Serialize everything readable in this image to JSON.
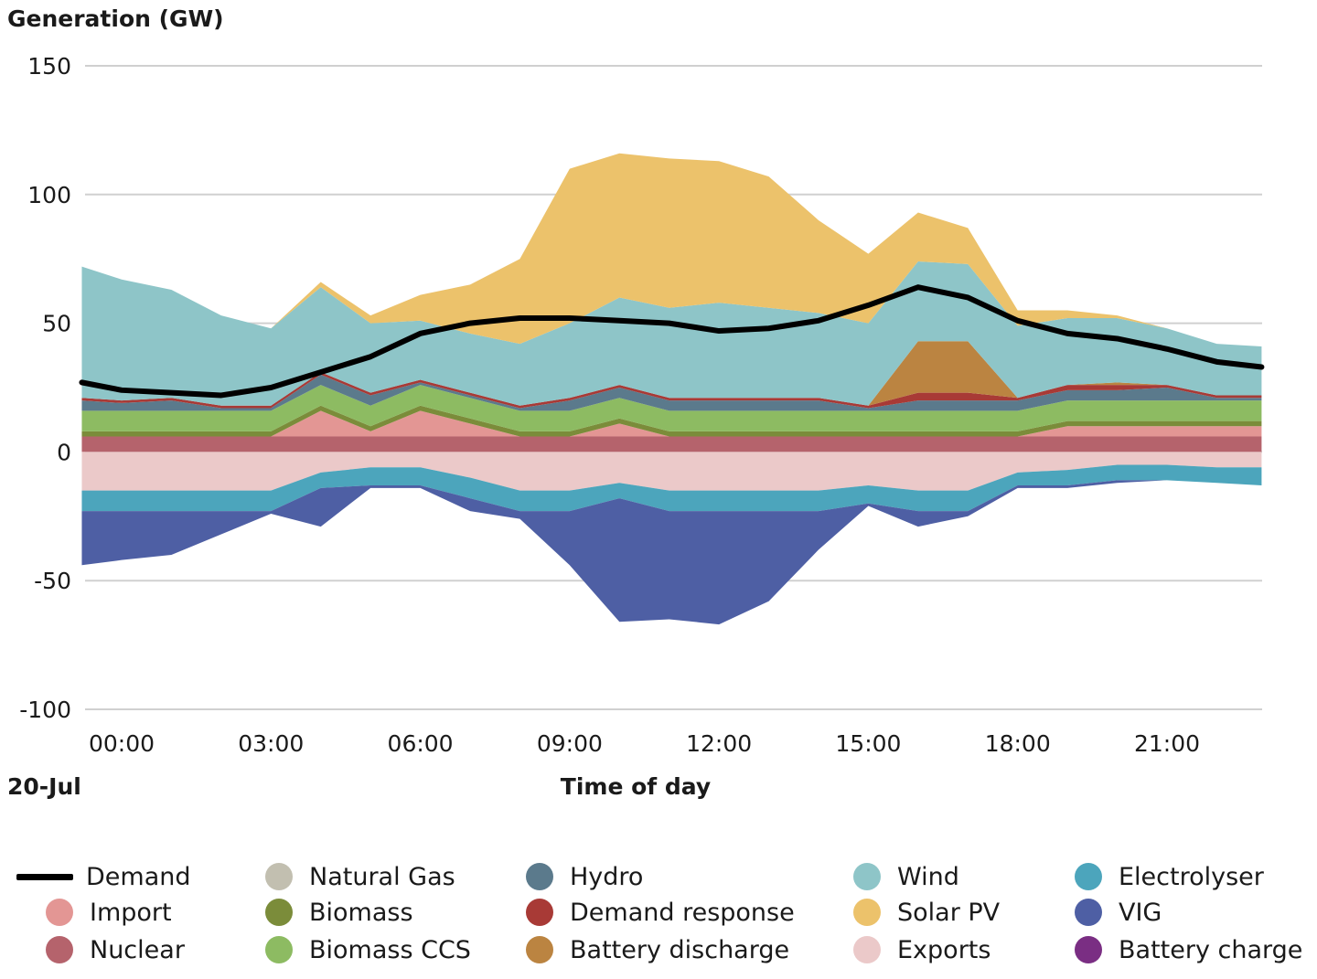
{
  "chart_data": {
    "type": "area",
    "ylabel": "Generation (GW)",
    "xlabel": "Time of day",
    "date": "20-Jul",
    "ylim": [
      -100,
      150
    ],
    "yticks": [
      150,
      100,
      50,
      0,
      -50,
      -100
    ],
    "xticks": [
      "00:00",
      "03:00",
      "06:00",
      "09:00",
      "12:00",
      "15:00",
      "18:00",
      "21:00"
    ],
    "xtick_hours": [
      0,
      3,
      6,
      9,
      12,
      15,
      18,
      21
    ],
    "grid": true,
    "legend_position": "bottom",
    "x_hours": [
      -0.8,
      0,
      1,
      2,
      3,
      4,
      5,
      6,
      7,
      8,
      9,
      10,
      11,
      12,
      13,
      14,
      15,
      16,
      17,
      18,
      19,
      20,
      21,
      22,
      22.9
    ],
    "positive_series": [
      {
        "name": "Nuclear",
        "color": "#b5636c",
        "values": [
          6,
          6,
          6,
          6,
          6,
          6,
          6,
          6,
          6,
          6,
          6,
          6,
          6,
          6,
          6,
          6,
          6,
          6,
          6,
          6,
          6,
          6,
          6,
          6,
          6
        ]
      },
      {
        "name": "Import",
        "color": "#e39694",
        "values": [
          0,
          0,
          0,
          0,
          0,
          10,
          2,
          10,
          5,
          0,
          0,
          5,
          0,
          0,
          0,
          0,
          0,
          0,
          0,
          0,
          4,
          4,
          4,
          4,
          4
        ]
      },
      {
        "name": "Natural Gas",
        "color": "#c2bfb0",
        "values": [
          0,
          0,
          0,
          0,
          0,
          0,
          0,
          0,
          0,
          0,
          0,
          0,
          0,
          0,
          0,
          0,
          0,
          0,
          0,
          0,
          0,
          0,
          0,
          0,
          0
        ]
      },
      {
        "name": "Biomass",
        "color": "#7b8c3a",
        "values": [
          2,
          2,
          2,
          2,
          2,
          2,
          2,
          2,
          2,
          2,
          2,
          2,
          2,
          2,
          2,
          2,
          2,
          2,
          2,
          2,
          2,
          2,
          2,
          2,
          2
        ]
      },
      {
        "name": "Biomass CCS",
        "color": "#8dbb62",
        "values": [
          8,
          8,
          8,
          8,
          8,
          8,
          8,
          8,
          8,
          8,
          8,
          8,
          8,
          8,
          8,
          8,
          8,
          8,
          8,
          8,
          8,
          8,
          8,
          8,
          8
        ]
      },
      {
        "name": "Hydro",
        "color": "#5b7a8c",
        "values": [
          4,
          3,
          4,
          1,
          1,
          4,
          4,
          1,
          1,
          1,
          4,
          4,
          4,
          4,
          4,
          4,
          1,
          4,
          4,
          4,
          4,
          4,
          5,
          1,
          1
        ]
      },
      {
        "name": "Demand response",
        "color": "#a83a36",
        "values": [
          1,
          1,
          1,
          1,
          1,
          1,
          1,
          1,
          1,
          1,
          1,
          1,
          1,
          1,
          1,
          1,
          1,
          3,
          3,
          1,
          2,
          2,
          1,
          1,
          1
        ]
      },
      {
        "name": "Battery discharge",
        "color": "#bb8441",
        "values": [
          0,
          0,
          0,
          0,
          0,
          0,
          0,
          0,
          0,
          0,
          0,
          0,
          0,
          0,
          0,
          0,
          0,
          20,
          20,
          0,
          0,
          1,
          0,
          0,
          0
        ]
      },
      {
        "name": "Wind",
        "color": "#8ec5c8",
        "values": [
          51,
          47,
          42,
          35,
          30,
          33,
          27,
          23,
          23,
          24,
          29,
          34,
          35,
          37,
          35,
          33,
          32,
          31,
          30,
          28,
          26,
          25,
          22,
          20,
          19
        ]
      },
      {
        "name": "Solar PV",
        "color": "#ecc26b",
        "values": [
          0,
          0,
          0,
          0,
          0,
          2,
          3,
          10,
          19,
          33,
          60,
          56,
          58,
          55,
          51,
          36,
          27,
          19,
          14,
          6,
          3,
          1,
          0,
          0,
          0
        ]
      }
    ],
    "negative_series": [
      {
        "name": "Exports",
        "color": "#ebc9c9",
        "values": [
          -15,
          -15,
          -15,
          -15,
          -15,
          -8,
          -6,
          -6,
          -10,
          -15,
          -15,
          -12,
          -15,
          -15,
          -15,
          -15,
          -13,
          -15,
          -15,
          -8,
          -7,
          -5,
          -5,
          -6,
          -6
        ]
      },
      {
        "name": "Electrolyser",
        "color": "#4ca5bc",
        "values": [
          -8,
          -8,
          -8,
          -8,
          -8,
          -6,
          -7,
          -7,
          -8,
          -8,
          -8,
          -6,
          -8,
          -8,
          -8,
          -8,
          -7,
          -8,
          -8,
          -5,
          -6,
          -6,
          -6,
          -6,
          -7
        ]
      },
      {
        "name": "VIG",
        "color": "#4e5fa4",
        "values": [
          -21,
          -19,
          -17,
          -9,
          -1,
          -15,
          -1,
          -1,
          -5,
          -3,
          -21,
          -48,
          -42,
          -44,
          -35,
          -15,
          -1,
          -6,
          -2,
          -1,
          -1,
          -1,
          0,
          0,
          0
        ]
      },
      {
        "name": "Battery charge",
        "color": "#7a2e83",
        "values": [
          0,
          0,
          0,
          0,
          0,
          0,
          0,
          0,
          0,
          0,
          0,
          0,
          0,
          0,
          0,
          0,
          0,
          0,
          0,
          0,
          0,
          0,
          0,
          0,
          0
        ]
      }
    ],
    "demand": {
      "name": "Demand",
      "color": "#000000",
      "values": [
        27,
        24,
        23,
        22,
        25,
        31,
        37,
        46,
        50,
        52,
        52,
        51,
        50,
        47,
        48,
        51,
        57,
        64,
        60,
        51,
        46,
        44,
        40,
        35,
        33
      ]
    }
  },
  "legend": {
    "items": [
      {
        "label": "Demand",
        "color": "#000000",
        "kind": "line"
      },
      {
        "label": "Import",
        "color": "#e39694",
        "kind": "dot"
      },
      {
        "label": "Nuclear",
        "color": "#b5636c",
        "kind": "dot"
      },
      {
        "label": "Natural Gas",
        "color": "#c2bfb0",
        "kind": "dot"
      },
      {
        "label": "Biomass",
        "color": "#7b8c3a",
        "kind": "dot"
      },
      {
        "label": "Biomass CCS",
        "color": "#8dbb62",
        "kind": "dot"
      },
      {
        "label": "Hydro",
        "color": "#5b7a8c",
        "kind": "dot"
      },
      {
        "label": "Demand response",
        "color": "#a83a36",
        "kind": "dot"
      },
      {
        "label": "Battery discharge",
        "color": "#bb8441",
        "kind": "dot"
      },
      {
        "label": "Wind",
        "color": "#8ec5c8",
        "kind": "dot"
      },
      {
        "label": "Solar PV",
        "color": "#ecc26b",
        "kind": "dot"
      },
      {
        "label": "Exports",
        "color": "#ebc9c9",
        "kind": "dot"
      },
      {
        "label": "Electrolyser",
        "color": "#4ca5bc",
        "kind": "dot"
      },
      {
        "label": "VIG",
        "color": "#4e5fa4",
        "kind": "dot"
      },
      {
        "label": "Battery charge",
        "color": "#7a2e83",
        "kind": "dot"
      }
    ]
  }
}
